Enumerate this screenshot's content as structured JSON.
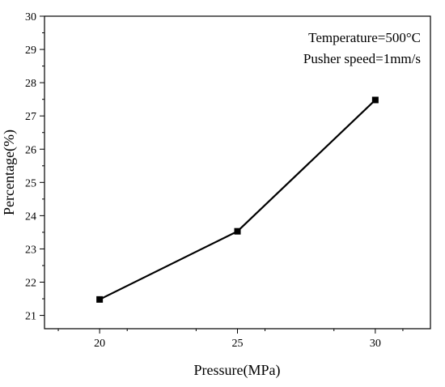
{
  "chart_data": {
    "type": "line",
    "title": "",
    "xlabel": "Pressure(MPa)",
    "ylabel": "Percentage(%)",
    "x": [
      20,
      25,
      30
    ],
    "series": [
      {
        "values": [
          21.48,
          23.53,
          27.48
        ],
        "marker": "square",
        "color": "#000000"
      }
    ],
    "xlim": [
      18,
      32
    ],
    "ylim": [
      20.6,
      30
    ],
    "xticks": [
      20,
      25,
      30
    ],
    "yticks": [
      21,
      22,
      23,
      24,
      25,
      26,
      27,
      28,
      29,
      30
    ],
    "x_tick_labels": [
      "20",
      "25",
      "30"
    ],
    "y_tick_labels": [
      "21",
      "22",
      "23",
      "24",
      "25",
      "26",
      "27",
      "28",
      "29",
      "30"
    ],
    "annotations": [
      "Temperature=500°C",
      "Pusher speed=1mm/s"
    ],
    "grid": false,
    "legend": false
  }
}
